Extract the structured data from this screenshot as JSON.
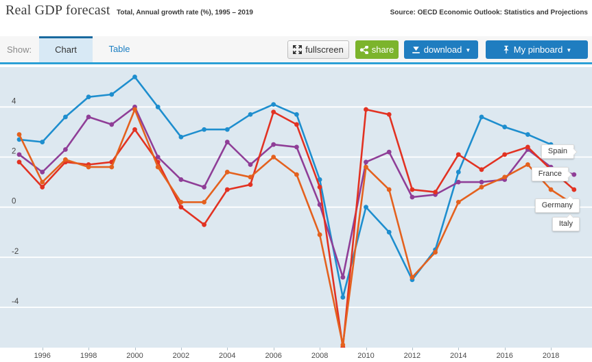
{
  "header": {
    "title": "Real GDP forecast",
    "subtitle": "Total, Annual growth rate (%), 1995 – 2019",
    "source": "Source: OECD Economic Outlook: Statistics and Projections"
  },
  "toolbar": {
    "show_label": "Show:",
    "tabs": [
      {
        "label": "Chart",
        "active": true
      },
      {
        "label": "Table",
        "active": false
      }
    ],
    "buttons": {
      "fullscreen_label": "fullscreen",
      "share_label": "share",
      "download_label": "download",
      "download_caret": "▼",
      "pinboard_label": "My pinboard",
      "pinboard_caret": "▼"
    },
    "icons": {
      "fullscreen": "expand-arrows-icon",
      "share": "share-nodes-icon",
      "download": "download-tray-icon",
      "pinboard": "pushpin-icon",
      "caret": "caret-down-icon"
    },
    "colors": {
      "share_green": "#7cb42c",
      "button_blue": "#1f7dc0",
      "tab_accent": "#19699e",
      "underline_blue": "#2ba0d6"
    }
  },
  "chart_data": {
    "type": "line",
    "title": "Real GDP forecast",
    "ylabel": "Annual growth rate (%)",
    "background": "#dde8f0",
    "grid": "horizontal-white",
    "ylim": [
      -5.6,
      5.6
    ],
    "yticks": [
      4,
      2,
      0,
      -2,
      -4
    ],
    "xticks": [
      1996,
      1998,
      2000,
      2002,
      2004,
      2006,
      2008,
      2010,
      2012,
      2014,
      2016,
      2018
    ],
    "legend_position": "right-callouts",
    "x": [
      1995,
      1996,
      1997,
      1998,
      1999,
      2000,
      2001,
      2002,
      2003,
      2004,
      2005,
      2006,
      2007,
      2008,
      2009,
      2010,
      2011,
      2012,
      2013,
      2014,
      2015,
      2016,
      2017,
      2018,
      2019
    ],
    "series": [
      {
        "name": "Spain",
        "color": "#1e8ece",
        "values": [
          2.7,
          2.6,
          3.6,
          4.4,
          4.5,
          5.2,
          4.0,
          2.8,
          3.1,
          3.1,
          3.7,
          4.1,
          3.7,
          1.1,
          -3.6,
          0.0,
          -1.0,
          -2.9,
          -1.7,
          1.4,
          3.6,
          3.2,
          2.9,
          2.5,
          2.2
        ]
      },
      {
        "name": "France",
        "color": "#8f3e97",
        "values": [
          2.1,
          1.4,
          2.3,
          3.6,
          3.3,
          4.0,
          2.0,
          1.1,
          0.8,
          2.6,
          1.7,
          2.5,
          2.4,
          0.1,
          -2.8,
          1.8,
          2.2,
          0.4,
          0.5,
          1.0,
          1.0,
          1.1,
          2.3,
          1.6,
          1.3
        ]
      },
      {
        "name": "Germany",
        "color": "#e23222",
        "values": [
          1.8,
          0.8,
          1.8,
          1.7,
          1.8,
          3.1,
          1.8,
          0.0,
          -0.7,
          0.7,
          0.9,
          3.8,
          3.3,
          0.8,
          -5.6,
          3.9,
          3.7,
          0.7,
          0.6,
          2.1,
          1.5,
          2.1,
          2.4,
          1.5,
          0.7
        ]
      },
      {
        "name": "Italy",
        "color": "#e4611e",
        "values": [
          2.9,
          1.0,
          1.9,
          1.6,
          1.6,
          3.9,
          1.6,
          0.2,
          0.2,
          1.4,
          1.2,
          2.0,
          1.3,
          -1.1,
          -5.5,
          1.6,
          0.7,
          -2.8,
          -1.8,
          0.2,
          0.8,
          1.2,
          1.7,
          0.7,
          0.1
        ]
      }
    ]
  }
}
